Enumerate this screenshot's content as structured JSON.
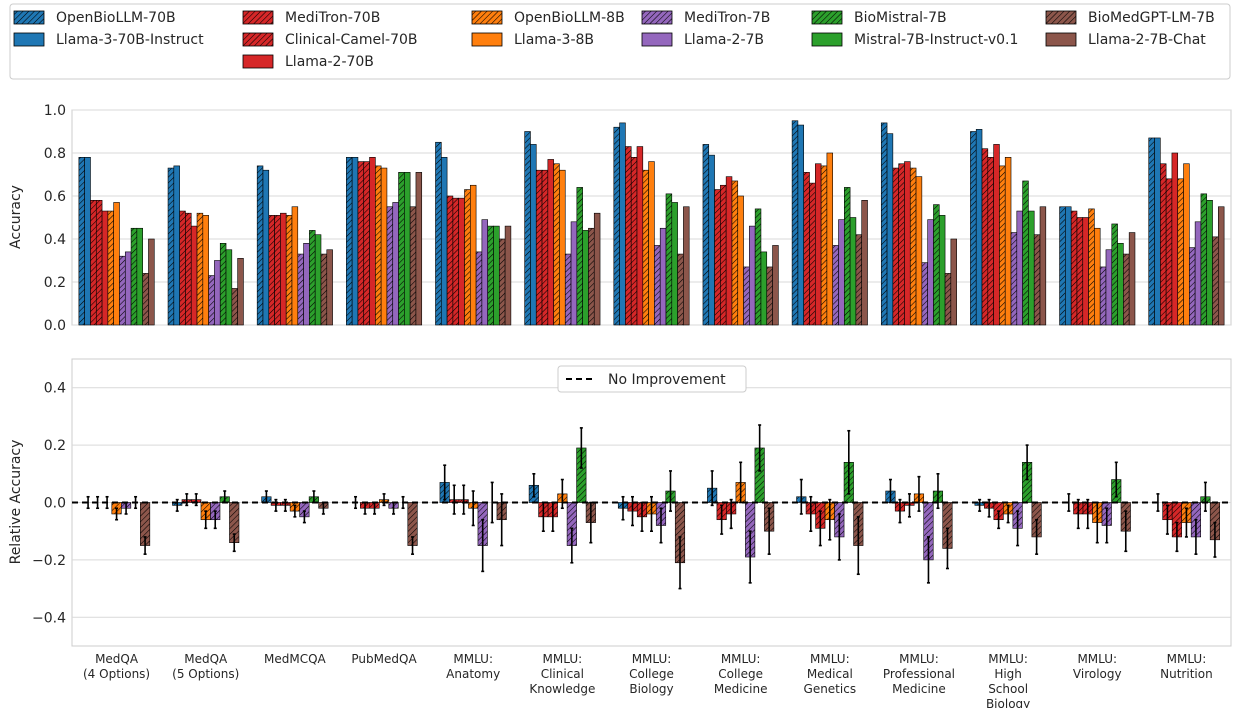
{
  "chart_data": [
    {
      "id": "top",
      "type": "bar",
      "title": "",
      "xlabel": "",
      "ylabel": "Accuracy",
      "ylim": [
        0,
        1.0
      ],
      "yticks": [
        "0.0",
        "0.2",
        "0.4",
        "0.6",
        "0.8",
        "1.0"
      ],
      "grid": true,
      "categories": [
        "MedQA (4 Options)",
        "MedQA (5 Options)",
        "MedMCQA",
        "PubMedQA",
        "MMLU: Anatomy",
        "MMLU: Clinical Knowledge",
        "MMLU: College Biology",
        "MMLU: College Medicine",
        "MMLU: Medical Genetics",
        "MMLU: Professional Medicine",
        "MMLU: High School Biology",
        "MMLU: Virology",
        "MMLU: Nutrition"
      ],
      "series": [
        {
          "name": "OpenBioLLM-70B",
          "values": [
            0.78,
            0.73,
            0.74,
            0.78,
            0.85,
            0.9,
            0.92,
            0.84,
            0.95,
            0.94,
            0.9,
            0.55,
            0.87
          ]
        },
        {
          "name": "Llama-3-70B-Instruct",
          "values": [
            0.78,
            0.74,
            0.72,
            0.78,
            0.78,
            0.84,
            0.94,
            0.79,
            0.93,
            0.89,
            0.91,
            0.55,
            0.87
          ]
        },
        {
          "name": "MediTron-70B",
          "values": [
            0.58,
            0.53,
            0.51,
            0.76,
            0.6,
            0.72,
            0.83,
            0.63,
            0.71,
            0.73,
            0.82,
            0.53,
            0.75
          ]
        },
        {
          "name": "Clinical-Camel-70B",
          "values": [
            0.58,
            0.52,
            0.51,
            0.76,
            0.59,
            0.72,
            0.78,
            0.65,
            0.66,
            0.75,
            0.78,
            0.5,
            0.68
          ]
        },
        {
          "name": "Llama-2-70B",
          "values": [
            0.53,
            0.46,
            0.52,
            0.78,
            0.59,
            0.77,
            0.83,
            0.69,
            0.75,
            0.76,
            0.84,
            0.5,
            0.8
          ]
        },
        {
          "name": "OpenBioLLM-8B",
          "values": [
            0.53,
            0.52,
            0.51,
            0.74,
            0.63,
            0.75,
            0.72,
            0.67,
            0.74,
            0.73,
            0.74,
            0.54,
            0.68
          ]
        },
        {
          "name": "Llama-3-8B",
          "values": [
            0.57,
            0.51,
            0.55,
            0.73,
            0.65,
            0.72,
            0.76,
            0.6,
            0.8,
            0.69,
            0.78,
            0.45,
            0.75
          ]
        },
        {
          "name": "MediTron-7B",
          "values": [
            0.32,
            0.23,
            0.33,
            0.55,
            0.34,
            0.33,
            0.37,
            0.27,
            0.37,
            0.29,
            0.43,
            0.27,
            0.36
          ]
        },
        {
          "name": "Llama-2-7B",
          "values": [
            0.34,
            0.3,
            0.38,
            0.57,
            0.49,
            0.48,
            0.45,
            0.46,
            0.49,
            0.49,
            0.53,
            0.35,
            0.48
          ]
        },
        {
          "name": "BioMistral-7B",
          "values": [
            0.45,
            0.38,
            0.44,
            0.71,
            0.46,
            0.64,
            0.61,
            0.54,
            0.64,
            0.56,
            0.67,
            0.47,
            0.61
          ]
        },
        {
          "name": "Mistral-7B-Instruct-v0.1",
          "values": [
            0.45,
            0.35,
            0.42,
            0.71,
            0.46,
            0.44,
            0.57,
            0.34,
            0.5,
            0.51,
            0.53,
            0.38,
            0.58
          ]
        },
        {
          "name": "BioMedGPT-LM-7B",
          "values": [
            0.24,
            0.17,
            0.33,
            0.55,
            0.4,
            0.45,
            0.33,
            0.27,
            0.42,
            0.24,
            0.42,
            0.33,
            0.41
          ]
        },
        {
          "name": "Llama-2-7B-Chat",
          "values": [
            0.4,
            0.31,
            0.35,
            0.71,
            0.46,
            0.52,
            0.55,
            0.37,
            0.58,
            0.4,
            0.55,
            0.43,
            0.55
          ]
        }
      ]
    },
    {
      "id": "bottom",
      "type": "bar",
      "title": "",
      "xlabel": "",
      "ylabel": "Relative Accuracy",
      "ylim": [
        -0.5,
        0.5
      ],
      "yticks": [
        "−0.4",
        "−0.2",
        "0.0",
        "0.2",
        "0.4"
      ],
      "grid": true,
      "reference_line": {
        "value": 0.0,
        "label": "No Improvement",
        "style": "dashed"
      },
      "x_tick_labels": [
        [
          "MedQA",
          "(4 Options)"
        ],
        [
          "MedQA",
          "(5 Options)"
        ],
        [
          "MedMCQA"
        ],
        [
          "PubMedQA"
        ],
        [
          "MMLU:",
          "Anatomy"
        ],
        [
          "MMLU:",
          "Clinical",
          "Knowledge"
        ],
        [
          "MMLU:",
          "College",
          "Biology"
        ],
        [
          "MMLU:",
          "College",
          "Medicine"
        ],
        [
          "MMLU:",
          "Medical",
          "Genetics"
        ],
        [
          "MMLU:",
          "Professional",
          "Medicine"
        ],
        [
          "MMLU:",
          "High",
          "School",
          "Biology"
        ],
        [
          "MMLU:",
          "Virology"
        ],
        [
          "MMLU:",
          "Nutrition"
        ]
      ],
      "series": [
        {
          "name": "OpenBioLLM-70B vs Llama-3-70B-Instruct",
          "values": [
            0.0,
            -0.01,
            0.02,
            0.0,
            0.07,
            0.06,
            -0.02,
            0.05,
            0.02,
            0.04,
            -0.01,
            0.0,
            0.0
          ],
          "errors": [
            0.02,
            0.02,
            0.02,
            0.02,
            0.06,
            0.04,
            0.04,
            0.06,
            0.06,
            0.04,
            0.02,
            0.03,
            0.03
          ]
        },
        {
          "name": "MediTron-70B vs Llama-2-70B",
          "values": [
            0.0,
            0.01,
            -0.01,
            -0.02,
            0.01,
            -0.05,
            -0.03,
            -0.06,
            -0.04,
            -0.03,
            -0.02,
            -0.04,
            -0.06
          ],
          "errors": [
            0.02,
            0.02,
            0.02,
            0.02,
            0.05,
            0.05,
            0.05,
            0.05,
            0.06,
            0.04,
            0.03,
            0.05,
            0.05
          ]
        },
        {
          "name": "Clinical-Camel-70B vs Llama-2-70B",
          "values": [
            0.0,
            0.01,
            -0.01,
            -0.02,
            0.01,
            -0.05,
            -0.05,
            -0.04,
            -0.09,
            -0.01,
            -0.06,
            -0.04,
            -0.12
          ],
          "errors": [
            0.02,
            0.02,
            0.02,
            0.02,
            0.05,
            0.05,
            0.05,
            0.05,
            0.06,
            0.04,
            0.03,
            0.05,
            0.05
          ]
        },
        {
          "name": "OpenBioLLM-8B vs Llama-3-8B",
          "values": [
            -0.04,
            -0.06,
            -0.03,
            0.01,
            -0.02,
            0.03,
            -0.04,
            0.07,
            -0.06,
            0.03,
            -0.04,
            -0.07,
            -0.07
          ],
          "errors": [
            0.02,
            0.03,
            0.02,
            0.02,
            0.06,
            0.05,
            0.06,
            0.07,
            0.07,
            0.06,
            0.03,
            0.07,
            0.05
          ]
        },
        {
          "name": "MediTron-7B vs Llama-2-7B",
          "values": [
            -0.02,
            -0.06,
            -0.05,
            -0.02,
            -0.15,
            -0.15,
            -0.08,
            -0.19,
            -0.12,
            -0.2,
            -0.09,
            -0.08,
            -0.12
          ],
          "errors": [
            0.02,
            0.03,
            0.02,
            0.02,
            0.09,
            0.06,
            0.06,
            0.09,
            0.08,
            0.08,
            0.06,
            0.06,
            0.06
          ]
        },
        {
          "name": "BioMistral-7B vs Mistral-7B-Instruct-v0.1",
          "values": [
            0.0,
            0.02,
            0.02,
            0.0,
            0.0,
            0.19,
            0.04,
            0.19,
            0.14,
            0.04,
            0.14,
            0.08,
            0.02
          ],
          "errors": [
            0.02,
            0.02,
            0.02,
            0.02,
            0.07,
            0.07,
            0.07,
            0.08,
            0.11,
            0.06,
            0.06,
            0.06,
            0.05
          ]
        },
        {
          "name": "BioMedGPT-LM-7B vs Llama-2-7B-Chat",
          "values": [
            -0.15,
            -0.14,
            -0.02,
            -0.15,
            -0.06,
            -0.07,
            -0.21,
            -0.1,
            -0.15,
            -0.16,
            -0.12,
            -0.1,
            -0.13
          ],
          "errors": [
            0.03,
            0.03,
            0.02,
            0.03,
            0.09,
            0.07,
            0.09,
            0.08,
            0.1,
            0.07,
            0.06,
            0.07,
            0.06
          ]
        }
      ]
    }
  ],
  "legend": {
    "placement": "top",
    "columns": [
      [
        {
          "label": "OpenBioLLM-70B",
          "color": "#1f77b4",
          "hatch": true
        },
        {
          "label": "Llama-3-70B-Instruct",
          "color": "#1f77b4",
          "hatch": false
        }
      ],
      [
        {
          "label": "MediTron-70B",
          "color": "#d62728",
          "hatch": true
        },
        {
          "label": "Clinical-Camel-70B",
          "color": "#d62728",
          "hatch": true
        },
        {
          "label": "Llama-2-70B",
          "color": "#d62728",
          "hatch": false
        }
      ],
      [
        {
          "label": "OpenBioLLM-8B",
          "color": "#ff7f0e",
          "hatch": true
        },
        {
          "label": "Llama-3-8B",
          "color": "#ff7f0e",
          "hatch": false
        }
      ],
      [
        {
          "label": "MediTron-7B",
          "color": "#9467bd",
          "hatch": true
        },
        {
          "label": "Llama-2-7B",
          "color": "#9467bd",
          "hatch": false
        }
      ],
      [
        {
          "label": "BioMistral-7B",
          "color": "#2ca02c",
          "hatch": true
        },
        {
          "label": "Mistral-7B-Instruct-v0.1",
          "color": "#2ca02c",
          "hatch": false
        }
      ],
      [
        {
          "label": "BioMedGPT-LM-7B",
          "color": "#8c564b",
          "hatch": true
        },
        {
          "label": "Llama-2-7B-Chat",
          "color": "#8c564b",
          "hatch": false
        }
      ]
    ]
  },
  "colors": {
    "blue": "#1f77b4",
    "red": "#d62728",
    "orange": "#ff7f0e",
    "purple": "#9467bd",
    "green": "#2ca02c",
    "brown": "#8c564b",
    "grid": "#d9d9d9",
    "axis_text": "#262626"
  },
  "series_style": {
    "top": [
      {
        "color": "#1f77b4",
        "hatch": true
      },
      {
        "color": "#1f77b4",
        "hatch": false
      },
      {
        "color": "#d62728",
        "hatch": true
      },
      {
        "color": "#d62728",
        "hatch": true
      },
      {
        "color": "#d62728",
        "hatch": false
      },
      {
        "color": "#ff7f0e",
        "hatch": true
      },
      {
        "color": "#ff7f0e",
        "hatch": false
      },
      {
        "color": "#9467bd",
        "hatch": true
      },
      {
        "color": "#9467bd",
        "hatch": false
      },
      {
        "color": "#2ca02c",
        "hatch": true
      },
      {
        "color": "#2ca02c",
        "hatch": false
      },
      {
        "color": "#8c564b",
        "hatch": true
      },
      {
        "color": "#8c564b",
        "hatch": false
      }
    ],
    "bottom": [
      {
        "color": "#1f77b4",
        "hatch": true
      },
      {
        "color": "#d62728",
        "hatch": true
      },
      {
        "color": "#d62728",
        "hatch": true
      },
      {
        "color": "#ff7f0e",
        "hatch": true
      },
      {
        "color": "#9467bd",
        "hatch": true
      },
      {
        "color": "#2ca02c",
        "hatch": true
      },
      {
        "color": "#8c564b",
        "hatch": true
      }
    ]
  }
}
